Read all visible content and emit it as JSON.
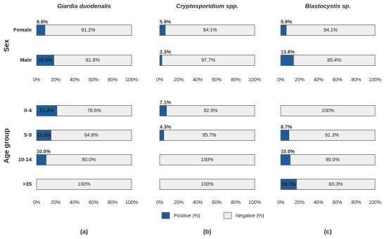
{
  "row_groups": [
    {
      "name": "Sex",
      "categories": [
        "Female",
        "Male"
      ]
    },
    {
      "name": "Age group",
      "categories": [
        "0-4",
        "5-9",
        "10-14",
        ">35"
      ]
    }
  ],
  "legend": {
    "position": "bottom",
    "entries": [
      {
        "name": "Positive (%)",
        "color": "#1f5c99"
      },
      {
        "name": "Negative (%)",
        "color": "#efefef"
      }
    ]
  },
  "chart_data": [
    {
      "type": "bar",
      "orientation": "horizontal",
      "stacked": true,
      "title": "Giardia duodenalis",
      "label": "(a)",
      "xlim": [
        0,
        100
      ],
      "xticks": [
        {
          "value": 0,
          "label": "0%"
        },
        {
          "value": 20,
          "label": "20%"
        },
        {
          "value": 40,
          "label": "40%"
        },
        {
          "value": 60,
          "label": "60%"
        },
        {
          "value": 80,
          "label": "80%"
        },
        {
          "value": 100,
          "label": "100%"
        }
      ],
      "groups": [
        {
          "series": [
            {
              "values": [
                8.8,
                18.2
              ],
              "value_labels": [
                "8.8%",
                "18.2%"
              ]
            },
            {
              "values": [
                91.2,
                81.8
              ],
              "value_labels": [
                "91.2%",
                "81.8%"
              ]
            }
          ]
        },
        {
          "series": [
            {
              "values": [
                21.4,
                15.2,
                10,
                0
              ],
              "value_labels": [
                "21.4%",
                "15.2%",
                "10.0%",
                null
              ]
            },
            {
              "values": [
                78.6,
                84.8,
                90,
                100
              ],
              "value_labels": [
                "78.6%",
                "84.8%",
                "90.0%",
                "100%"
              ]
            }
          ]
        }
      ]
    },
    {
      "type": "bar",
      "orientation": "horizontal",
      "stacked": true,
      "title": "Cryptosporidium spp.",
      "label": "(b)",
      "xlim": [
        0,
        100
      ],
      "xticks": [
        {
          "value": 0,
          "label": "0%"
        },
        {
          "value": 20,
          "label": "20%"
        },
        {
          "value": 40,
          "label": "40%"
        },
        {
          "value": 60,
          "label": "60%"
        },
        {
          "value": 80,
          "label": "80%"
        },
        {
          "value": 100,
          "label": "100%"
        }
      ],
      "groups": [
        {
          "series": [
            {
              "values": [
                5.9,
                2.3
              ],
              "value_labels": [
                "5.9%",
                "2.3%"
              ]
            },
            {
              "values": [
                94.1,
                97.7
              ],
              "value_labels": [
                "94.1%",
                "97.7%"
              ]
            }
          ]
        },
        {
          "series": [
            {
              "values": [
                7.1,
                4.3,
                0,
                0
              ],
              "value_labels": [
                "7.1%",
                "4.3%",
                null,
                null
              ]
            },
            {
              "values": [
                92.9,
                95.7,
                100,
                100
              ],
              "value_labels": [
                "92.9%",
                "95.7%",
                "100%",
                "100%"
              ]
            }
          ]
        }
      ]
    },
    {
      "type": "bar",
      "orientation": "horizontal",
      "stacked": true,
      "title": "Blastocystis sp.",
      "label": "(c)",
      "xlim": [
        0,
        100
      ],
      "xticks": [
        {
          "value": 0,
          "label": "0%"
        },
        {
          "value": 20,
          "label": "20%"
        },
        {
          "value": 40,
          "label": "40%"
        },
        {
          "value": 60,
          "label": "60%"
        },
        {
          "value": 80,
          "label": "80%"
        },
        {
          "value": 100,
          "label": "100%"
        }
      ],
      "groups": [
        {
          "series": [
            {
              "values": [
                5.9,
                13.6
              ],
              "value_labels": [
                "5.9%",
                "13.6%"
              ]
            },
            {
              "values": [
                94.1,
                86.4
              ],
              "value_labels": [
                "94.1%",
                "86.4%"
              ]
            }
          ]
        },
        {
          "series": [
            {
              "values": [
                0,
                8.7,
                10,
                16.7
              ],
              "value_labels": [
                null,
                "8.7%",
                "10.0%",
                "16.7%"
              ]
            },
            {
              "values": [
                100,
                91.3,
                90,
                83.3
              ],
              "value_labels": [
                "100%",
                "91.3%",
                "90.0%",
                "83.3%"
              ]
            }
          ]
        }
      ]
    }
  ]
}
